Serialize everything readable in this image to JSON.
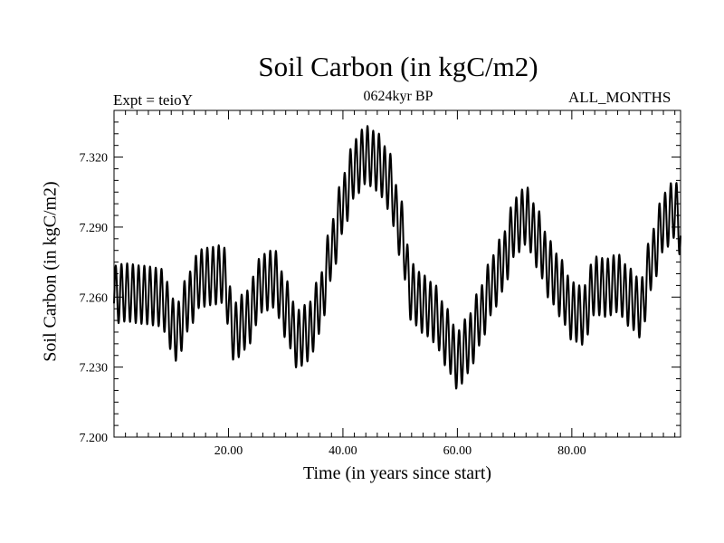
{
  "chart_data": {
    "type": "line",
    "title": "Soil Carbon (in kgC/m2)",
    "subtitle": "0624kyr BP",
    "left_annotation": "Expt = teioY",
    "right_annotation": "ALL_MONTHS",
    "xlabel": "Time (in years since start)",
    "ylabel": "Soil Carbon (in kgC/m2)",
    "xlim": [
      0,
      99
    ],
    "ylim": [
      7.2,
      7.34
    ],
    "xticks": [
      20,
      40,
      60,
      80
    ],
    "xtick_labels": [
      "20.00",
      "40.00",
      "60.00",
      "80.00"
    ],
    "yticks": [
      7.2,
      7.23,
      7.26,
      7.29,
      7.32
    ],
    "ytick_labels": [
      "7.200",
      "7.230",
      "7.260",
      "7.290",
      "7.320"
    ],
    "series": [
      {
        "name": "Soil Carbon",
        "seasonal_amplitude": 0.0125,
        "x": [
          0,
          2,
          5,
          8,
          11,
          13,
          15,
          17,
          19,
          21,
          23,
          26,
          28,
          30,
          32,
          34,
          36,
          38,
          40,
          42,
          44,
          46,
          48,
          50,
          52,
          54,
          56,
          58,
          60,
          62,
          64,
          66,
          68,
          70,
          72,
          74,
          76,
          78,
          80,
          82,
          84,
          86,
          88,
          90,
          92,
          94,
          96,
          98,
          99
        ],
        "values": [
          7.261,
          7.262,
          7.261,
          7.26,
          7.245,
          7.258,
          7.268,
          7.269,
          7.27,
          7.245,
          7.25,
          7.266,
          7.268,
          7.255,
          7.242,
          7.245,
          7.257,
          7.28,
          7.3,
          7.315,
          7.321,
          7.318,
          7.31,
          7.29,
          7.262,
          7.257,
          7.253,
          7.243,
          7.233,
          7.24,
          7.252,
          7.265,
          7.275,
          7.29,
          7.295,
          7.285,
          7.272,
          7.264,
          7.254,
          7.252,
          7.265,
          7.264,
          7.266,
          7.26,
          7.255,
          7.276,
          7.292,
          7.298,
          7.29
        ]
      }
    ]
  }
}
